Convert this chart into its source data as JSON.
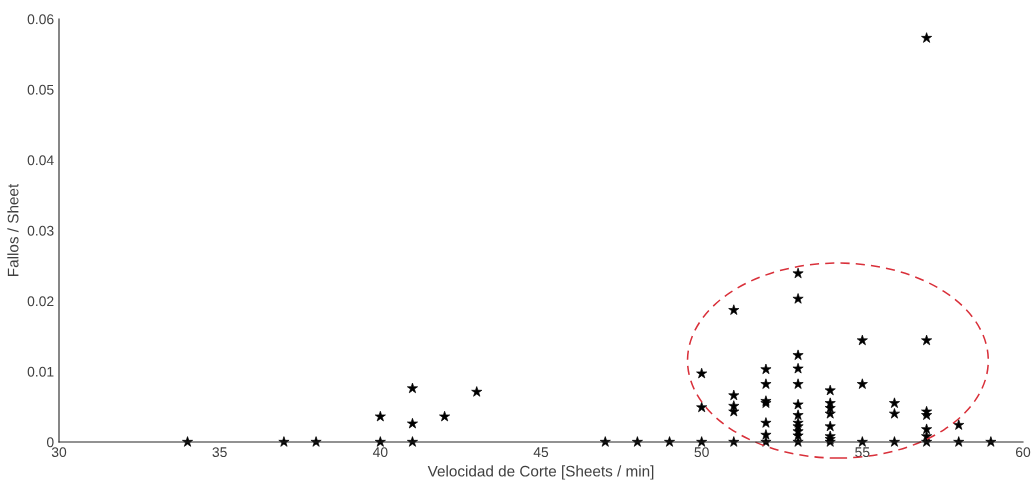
{
  "chart_data": {
    "type": "scatter",
    "xlabel": "Velocidad de Corte [Sheets / min]",
    "ylabel": "Fallos / Sheet",
    "xlim": [
      30,
      60
    ],
    "xticks": [
      30,
      35,
      40,
      45,
      50,
      55,
      60
    ],
    "ylim": [
      0,
      0.06
    ],
    "yticks": [
      0,
      0.01,
      0.02,
      0.03,
      0.04,
      0.05,
      0.06
    ],
    "grid": false,
    "marker": "star",
    "series": [
      {
        "color": "#000000",
        "x": [
          34,
          37,
          38,
          40,
          40,
          41,
          41,
          41,
          42,
          43,
          47,
          48,
          49,
          50,
          50,
          50,
          51,
          51,
          51,
          51,
          51,
          52,
          52,
          52,
          52,
          52,
          52,
          52,
          53,
          53,
          53,
          53,
          53,
          53,
          53,
          53,
          53,
          53,
          53,
          53,
          54,
          54,
          54,
          54,
          54,
          54,
          54,
          54,
          55,
          55,
          55,
          56,
          56,
          56,
          57,
          57,
          57,
          57,
          57,
          57,
          57,
          58,
          58,
          59
        ],
        "values": [
          0,
          0,
          0,
          0.0036,
          0,
          0.0076,
          0.0026,
          0,
          0.0036,
          0.0071,
          0,
          0,
          0,
          0.0097,
          0.0049,
          0,
          0.0187,
          0.0066,
          0.0051,
          0.0043,
          0,
          0.0103,
          0.0082,
          0.0058,
          0.0055,
          0.0027,
          0.001,
          0,
          0.0239,
          0.0203,
          0.0123,
          0.0104,
          0.0082,
          0.0053,
          0.0038,
          0.0027,
          0.0022,
          0.0015,
          0.0009,
          0,
          0.0073,
          0.0055,
          0.0048,
          0.004,
          0.0022,
          0.0008,
          0.0004,
          0,
          0.0144,
          0.0082,
          0,
          0.0055,
          0.004,
          0,
          0.0573,
          0.0144,
          0.0043,
          0.0038,
          0.0018,
          0.0008,
          0,
          0.0024,
          0,
          0
        ]
      }
    ]
  }
}
